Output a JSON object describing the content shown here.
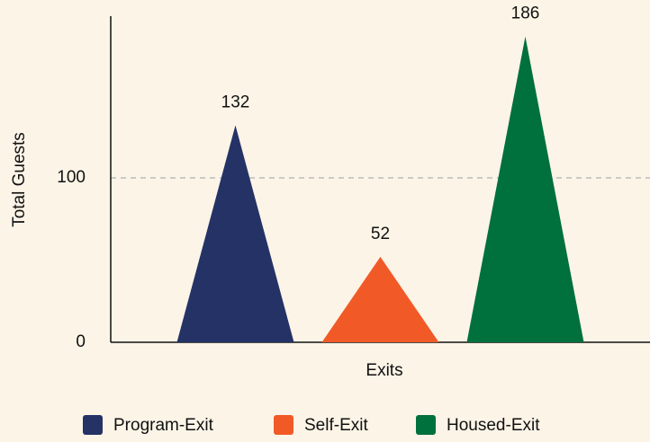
{
  "chart_data": {
    "type": "bar",
    "xlabel": "Exits",
    "ylabel": "Total Guests",
    "categories": [
      null
    ],
    "series": [
      {
        "name": "Program-Exit",
        "color": "#253266",
        "values": [
          132
        ]
      },
      {
        "name": "Self-Exit",
        "color": "#f15a27",
        "values": [
          52
        ]
      },
      {
        "name": "Housed-Exit",
        "color": "#00703c",
        "values": [
          186
        ]
      }
    ],
    "ylim": [
      0,
      200
    ],
    "yticks": [
      0,
      100
    ],
    "grid": true,
    "legend": "bottom"
  }
}
